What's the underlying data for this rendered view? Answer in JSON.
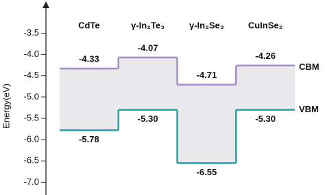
{
  "chart_data": {
    "type": "band-diagram",
    "y_label": "Energy(eV)",
    "categories": [
      "CdTe",
      "γ-In₂Te₃",
      "γ-In₂Se₃",
      "CuInSe₂"
    ],
    "series": [
      {
        "name": "CBM",
        "color": "#a48ec9",
        "values": [
          -4.33,
          -4.07,
          -4.71,
          -4.26
        ],
        "value_labels": [
          "-4.33",
          "-4.07",
          "-4.71",
          "-4.26"
        ]
      },
      {
        "name": "VBM",
        "color": "#1ba5a8",
        "values": [
          -5.78,
          -5.3,
          -6.55,
          -5.3
        ],
        "value_labels": [
          "-5.78",
          "-5.30",
          "-6.55",
          "-5.30"
        ]
      }
    ],
    "fill_color": "#e9e9ec",
    "ylim": [
      -7.3,
      -2.85
    ],
    "yticks": [
      -3.5,
      {
        "value": -4,
        "label": "-4.0"
      },
      -4.5,
      {
        "value": -5,
        "label": "-5.0"
      },
      -5.5,
      {
        "value": -6,
        "label": "-6.0"
      },
      -6.5,
      {
        "value": -7,
        "label": "-7.0"
      }
    ]
  }
}
